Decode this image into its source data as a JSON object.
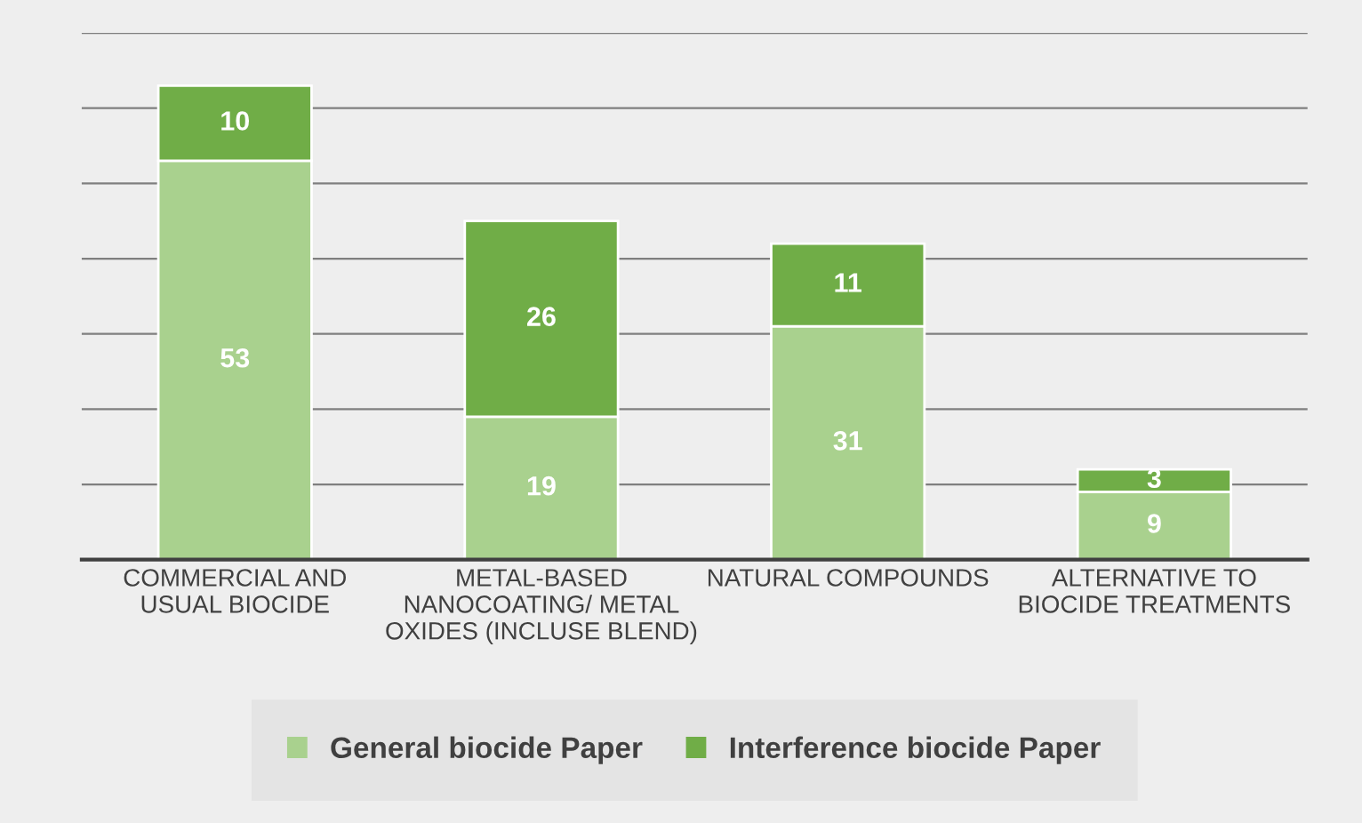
{
  "chart_data": {
    "type": "bar",
    "stacked": true,
    "data_labels": true,
    "grid": "y",
    "legend": "bottom",
    "tick_labels": "x",
    "categories": [
      "COMMERCIAL AND\nUSUAL BIOCIDE",
      "METAL-BASED\nNANOCOATING/ METAL\nOXIDES (INCLUSE BLEND)",
      "NATURAL COMPOUNDS",
      "ALTERNATIVE TO\nBIOCIDE TREATMENTS"
    ],
    "ylim": [
      0,
      70
    ],
    "yticks": [
      {
        "value": 0,
        "label": null
      },
      {
        "value": 10,
        "label": null
      },
      {
        "value": 20,
        "label": null
      },
      {
        "value": 30,
        "label": null
      },
      {
        "value": 40,
        "label": null
      },
      {
        "value": 50,
        "label": null
      },
      {
        "value": 60,
        "label": null
      },
      {
        "value": 70,
        "label": null
      }
    ],
    "series": [
      {
        "name": "General biocide Paper",
        "color": "#a9d18e",
        "values": [
          53,
          19,
          31,
          9
        ]
      },
      {
        "name": "Interference biocide Paper",
        "color": "#70ad47",
        "values": [
          10,
          26,
          11,
          3
        ]
      }
    ]
  }
}
